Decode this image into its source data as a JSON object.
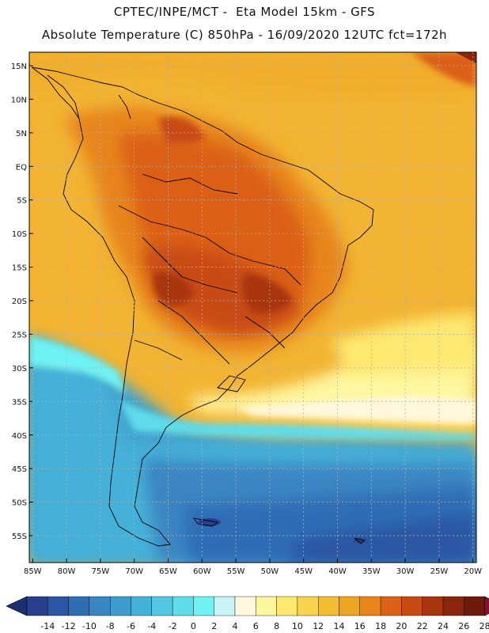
{
  "title_line1": "CPTEC/INPE/MCT -  Eta Model 15km - GFS",
  "title_line2": "Absolute Temperature (C) 850hPa - 16/09/2020 12UTC fct=172h",
  "map": {
    "lat_ticks": [
      "15N",
      "10N",
      "5N",
      "EQ",
      "5S",
      "10S",
      "15S",
      "20S",
      "25S",
      "30S",
      "35S",
      "40S",
      "45S",
      "50S",
      "55S"
    ],
    "lon_ticks": [
      "85W",
      "80W",
      "75W",
      "70W",
      "65W",
      "60W",
      "55W",
      "50W",
      "45W",
      "40W",
      "35W",
      "30W",
      "25W",
      "20W"
    ],
    "extent": {
      "lon_min": -85.5,
      "lon_max": -19.5,
      "lat_min": -59,
      "lat_max": 17
    }
  },
  "colorbar": {
    "levels": [
      "-14",
      "-12",
      "-10",
      "-8",
      "-6",
      "-4",
      "-2",
      "0",
      "2",
      "4",
      "6",
      "8",
      "10",
      "12",
      "14",
      "16",
      "18",
      "20",
      "22",
      "24",
      "26",
      "28"
    ],
    "colors": [
      "#283f8c",
      "#2b56a3",
      "#2f6db5",
      "#3a86c3",
      "#3e9bcd",
      "#44b1d8",
      "#52c8e3",
      "#5fdcea",
      "#6ef2f2",
      "#c9f3f7",
      "#fff8dc",
      "#fff6a0",
      "#fde971",
      "#f8d44e",
      "#f2bd30",
      "#eda420",
      "#e7851a",
      "#db6116",
      "#c84b12",
      "#a9350e",
      "#8a260b",
      "#6e1a08",
      "#8f0c2c"
    ],
    "under_color": "#1c2f70",
    "over_color": "#8f0c2c"
  }
}
